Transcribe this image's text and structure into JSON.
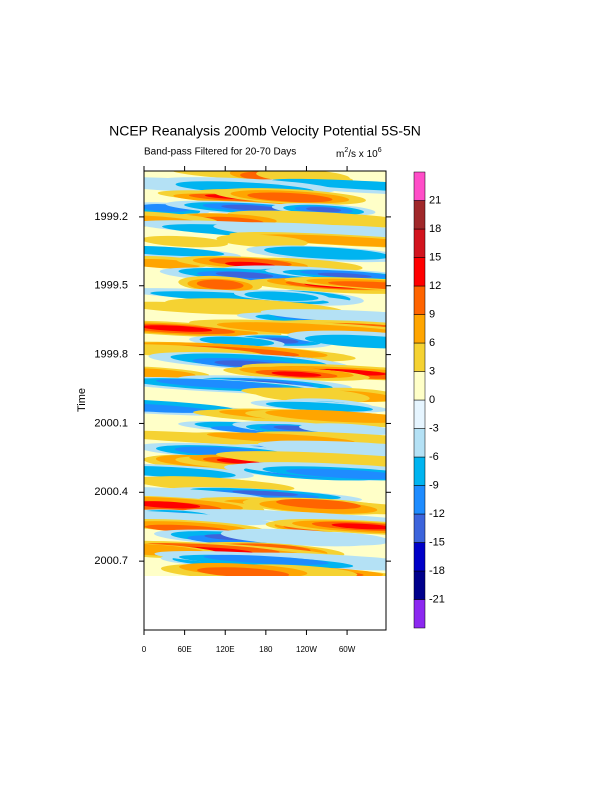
{
  "chart_data": {
    "type": "contour",
    "title": "NCEP Reanalysis 200mb Velocity Potential 5S-5N",
    "subtitle": "Band-pass Filtered for 20-70 Days",
    "units": [
      "m",
      "2",
      "/s x 10",
      "6"
    ],
    "y_label": "Time",
    "ylim": [
      1999.0,
      2001.0
    ],
    "yticks": [
      1999.2,
      1999.5,
      1999.8,
      2000.1,
      2000.4,
      2000.7
    ],
    "y_inverted": true,
    "xlim": [
      0,
      357.5
    ],
    "xticks": [
      0,
      {
        "value": 60,
        "label": "60E"
      },
      {
        "value": 120,
        "label": "120E"
      },
      180,
      {
        "value": 240,
        "label": "120W"
      },
      {
        "value": 300,
        "label": "60W"
      }
    ],
    "colorbar": {
      "levels": [
        -21,
        -18,
        -15,
        -12,
        -9,
        -6,
        -3,
        0,
        3,
        6,
        9,
        12,
        15,
        18,
        21
      ],
      "colors": [
        "#8c28f0",
        "#00008c",
        "#0000c8",
        "#3c64dc",
        "#1e8cff",
        "#00b4f0",
        "#b4e1f5",
        "#e6f5ff",
        "#ffffc8",
        "#f5d232",
        "#ffa500",
        "#ff6400",
        "#ff0000",
        "#d2141e",
        "#a0282a",
        "#ff4dc8"
      ]
    }
  }
}
